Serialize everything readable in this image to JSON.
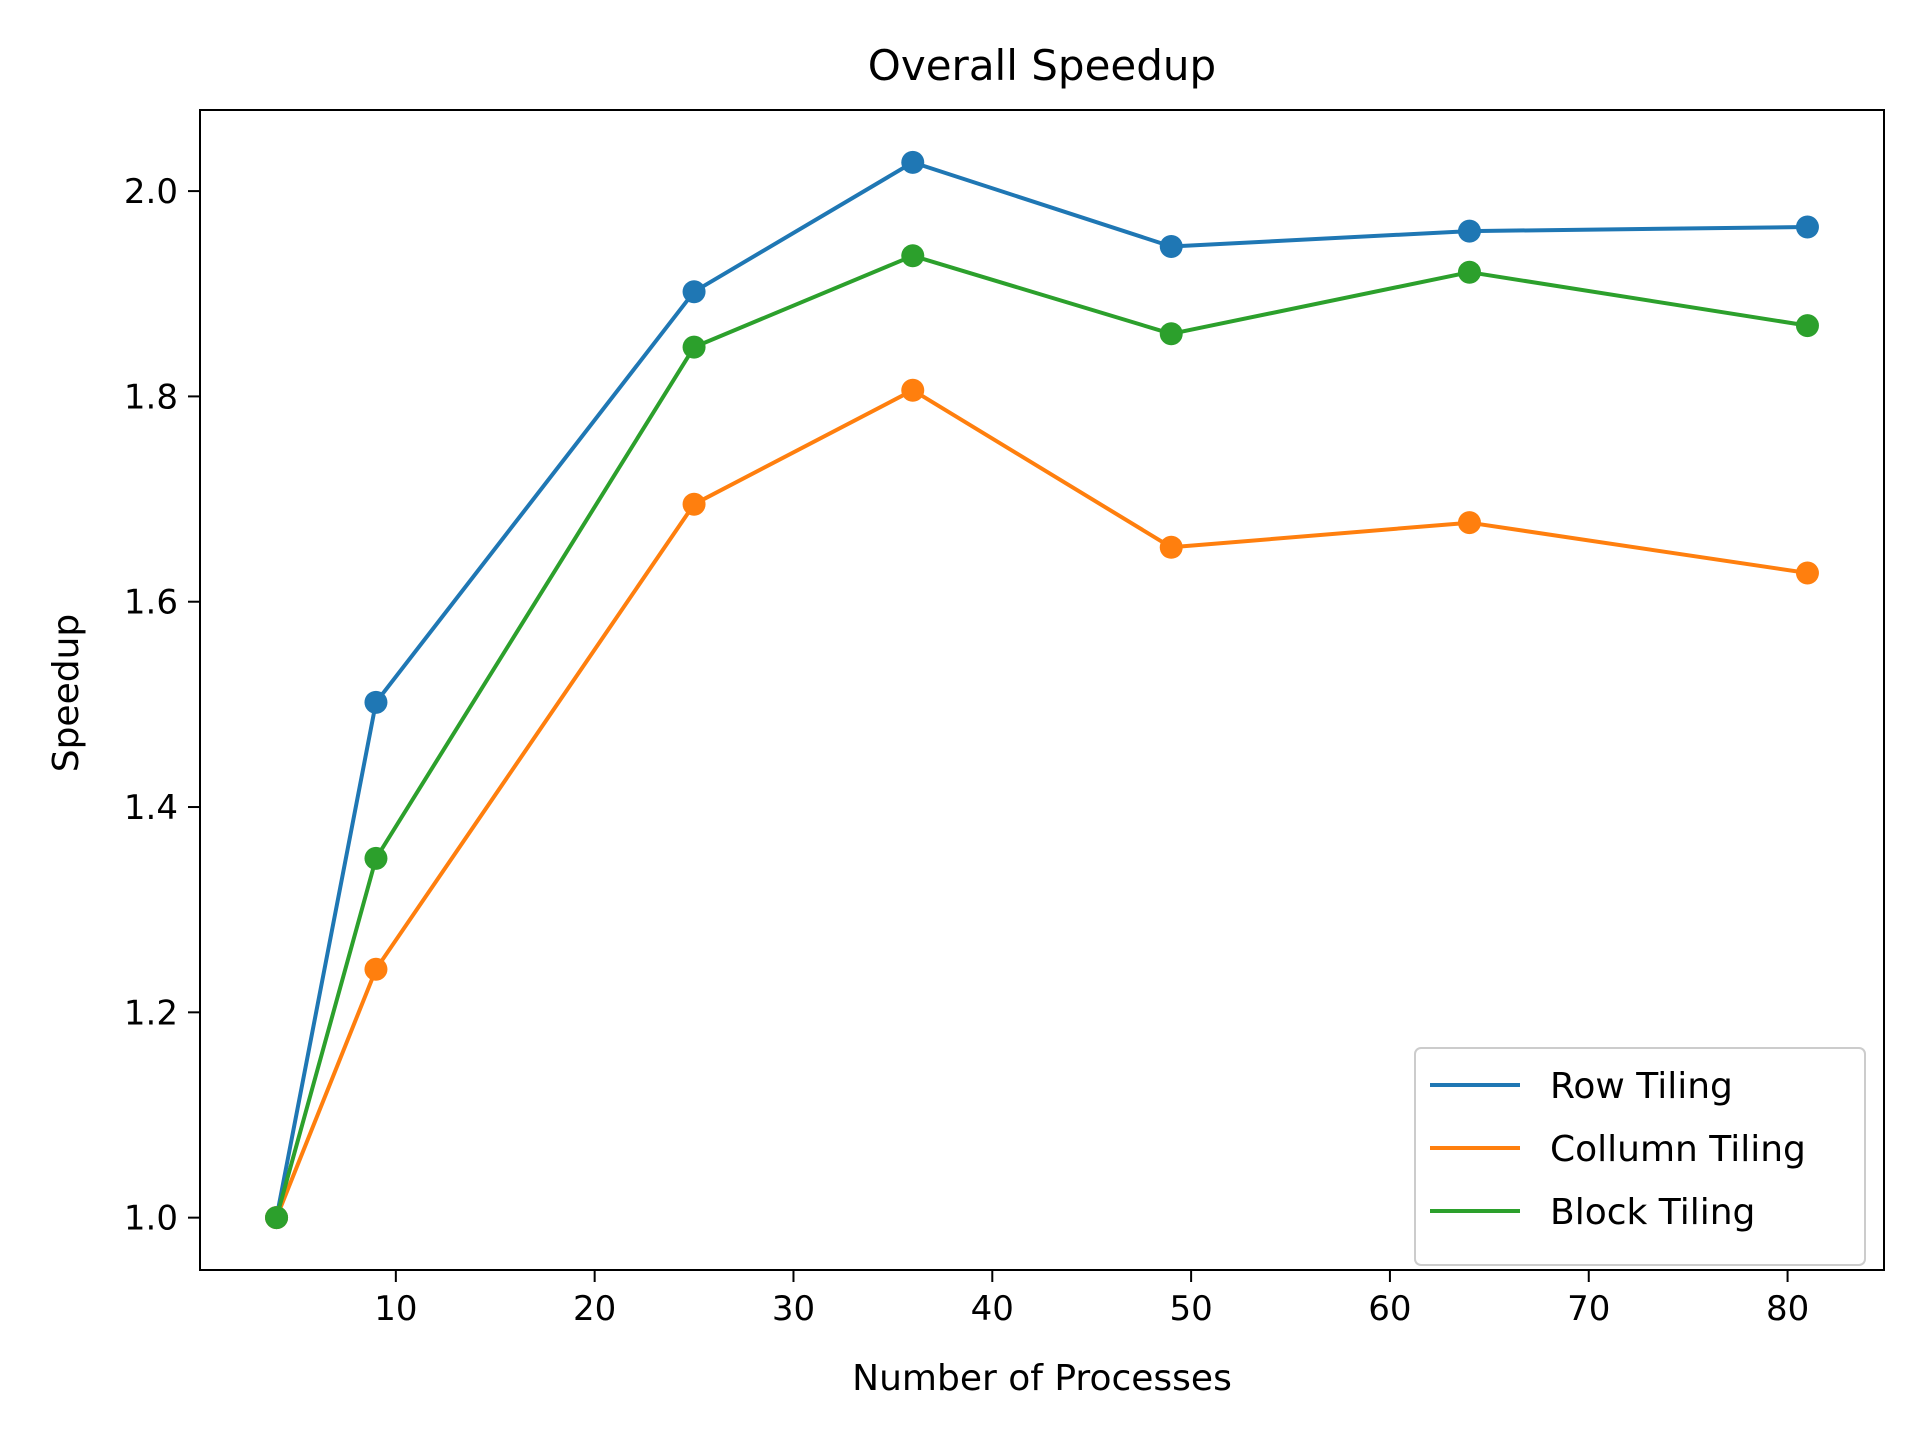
{
  "chart_data": {
    "type": "line",
    "title": "Overall Speedup",
    "xlabel": "Number of Processes",
    "ylabel": "Speedup",
    "x": [
      4,
      9,
      25,
      36,
      49,
      64,
      81
    ],
    "xlim": [
      0.15,
      84.85
    ],
    "ylim": [
      0.949,
      2.079
    ],
    "xticks": [
      10,
      20,
      30,
      40,
      50,
      60,
      70,
      80
    ],
    "yticks": [
      1.0,
      1.2,
      1.4,
      1.6,
      1.8,
      2.0
    ],
    "xtick_labels": [
      "10",
      "20",
      "30",
      "40",
      "50",
      "60",
      "70",
      "80"
    ],
    "ytick_labels": [
      "1.0",
      "1.2",
      "1.4",
      "1.6",
      "1.8",
      "2.0"
    ],
    "grid": false,
    "legend_position": "bottom-right",
    "series": [
      {
        "name": "Row Tiling",
        "color": "#1f77b4",
        "values": [
          1.0,
          1.502,
          1.902,
          2.028,
          1.946,
          1.961,
          1.965
        ]
      },
      {
        "name": "Collumn Tiling",
        "color": "#ff7f0e",
        "values": [
          1.0,
          1.242,
          1.695,
          1.806,
          1.653,
          1.677,
          1.628
        ]
      },
      {
        "name": "Block Tiling",
        "color": "#2ca02c",
        "values": [
          1.0,
          1.35,
          1.848,
          1.937,
          1.861,
          1.921,
          1.869
        ]
      }
    ]
  }
}
